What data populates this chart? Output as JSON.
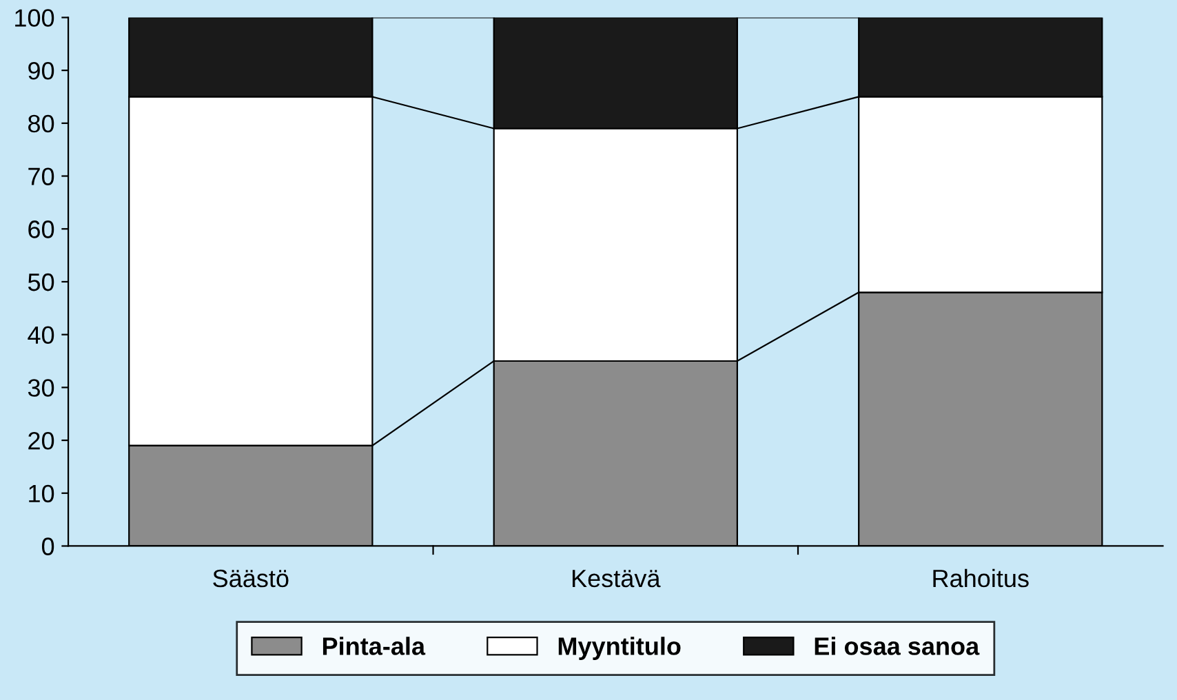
{
  "chart_data": {
    "type": "bar",
    "stacked": true,
    "categories": [
      "Säästö",
      "Kestävä",
      "Rahoitus"
    ],
    "series": [
      {
        "name": "Pinta-ala",
        "color": "#8c8c8c",
        "values": [
          19,
          35,
          48
        ]
      },
      {
        "name": "Myyntitulo",
        "color": "#ffffff",
        "values": [
          66,
          44,
          37
        ]
      },
      {
        "name": "Ei osaa sanoa",
        "color": "#1a1a1a",
        "values": [
          15,
          21,
          15
        ]
      }
    ],
    "ylim": [
      0,
      100
    ],
    "yticks": [
      0,
      10,
      20,
      30,
      40,
      50,
      60,
      70,
      80,
      90,
      100
    ],
    "grid": false,
    "legend": "bottom"
  }
}
